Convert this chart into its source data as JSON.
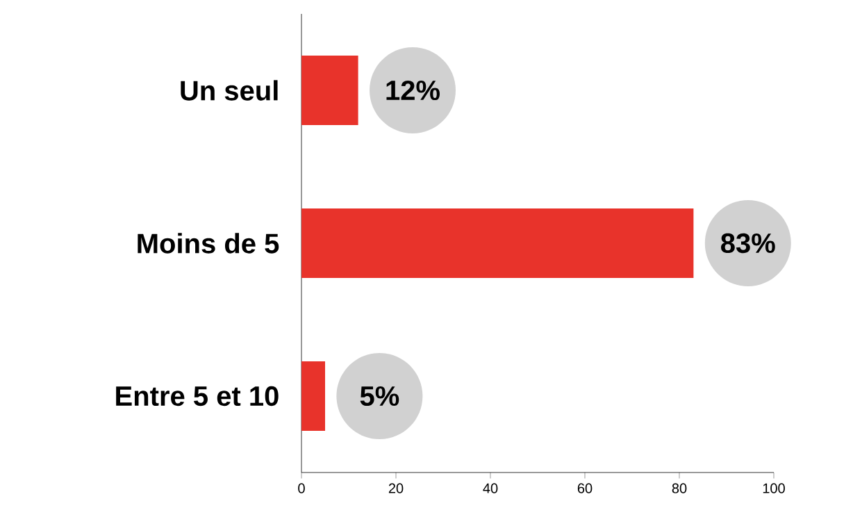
{
  "chart_data": {
    "type": "bar",
    "orientation": "horizontal",
    "categories": [
      "Un seul",
      "Moins de 5",
      "Entre 5 et 10"
    ],
    "values": [
      12,
      83,
      5
    ],
    "color": "#e8332b",
    "xlim": [
      0,
      100
    ],
    "xticks": [
      0,
      20,
      40,
      60,
      80,
      100
    ],
    "value_labels": [
      "12%",
      "83%",
      "5%"
    ]
  }
}
